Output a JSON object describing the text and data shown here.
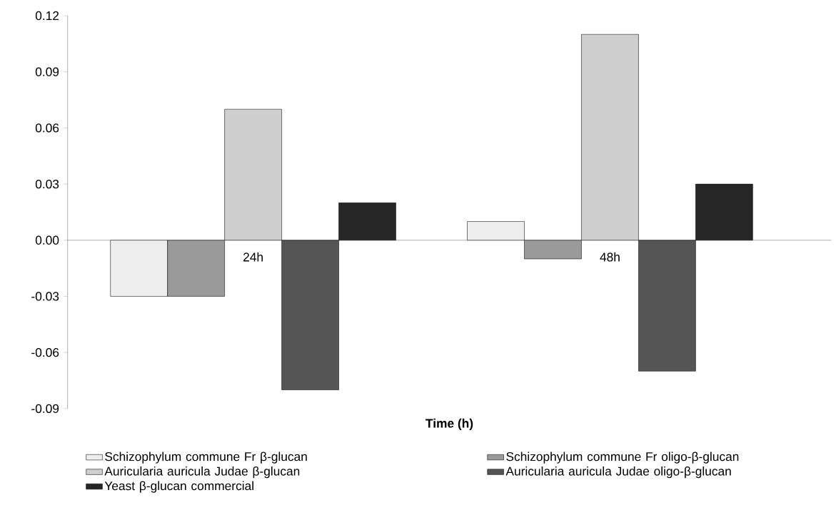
{
  "chart_data": {
    "type": "bar",
    "xlabel": "Time (h)",
    "categories": [
      "24h",
      "48h"
    ],
    "series": [
      {
        "name": "Schizophylum commune Fr β-glucan",
        "color": "#eeeeee",
        "values": [
          -0.03,
          0.01
        ]
      },
      {
        "name": "Schizophylum commune Fr oligo-β-glucan",
        "color": "#9a9a9a",
        "values": [
          -0.03,
          -0.01
        ]
      },
      {
        "name": "Auricularia auricula Judae β-glucan",
        "color": "#cfcfcf",
        "values": [
          0.07,
          0.11
        ]
      },
      {
        "name": "Auricularia auricula Judae oligo-β-glucan",
        "color": "#555555",
        "values": [
          -0.08,
          -0.07
        ]
      },
      {
        "name": "Yeast β-glucan commercial",
        "color": "#262626",
        "values": [
          0.02,
          0.03
        ]
      }
    ],
    "ylim": [
      -0.09,
      0.12
    ],
    "yticks": [
      -0.09,
      -0.06,
      -0.03,
      {
        "value": 0,
        "label": "0.00"
      },
      0.03,
      0.06,
      0.09,
      0.12
    ],
    "legend": "bottom"
  }
}
